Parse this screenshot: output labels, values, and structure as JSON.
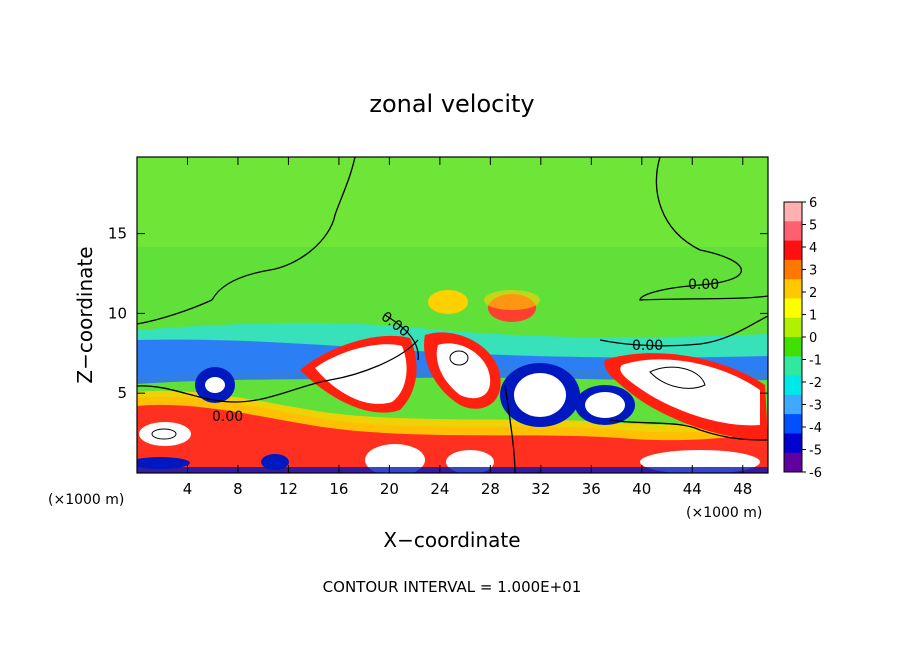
{
  "chart_data": {
    "type": "heatmap",
    "title": "zonal velocity",
    "xlabel": "X−coordinate",
    "ylabel": "Z−coordinate",
    "x_unit_left": "(×1000 m)",
    "x_unit_right": "(×1000 m)",
    "footer": "CONTOUR INTERVAL = 1.000E+01",
    "xlim": [
      0,
      50
    ],
    "ylim": [
      0,
      19.8
    ],
    "x_ticks": [
      4,
      8,
      12,
      16,
      20,
      24,
      28,
      32,
      36,
      40,
      44,
      48
    ],
    "y_ticks": [
      5,
      10,
      15
    ],
    "colorbar": {
      "ticks": [
        6,
        5,
        4,
        3,
        2,
        1,
        0,
        -1,
        -2,
        -3,
        -4,
        -5,
        -6
      ],
      "colors": [
        "#ffb0b0",
        "#ff6070",
        "#ff1010",
        "#ff7800",
        "#ffc800",
        "#ffff00",
        "#b0f000",
        "#40e000",
        "#30e8a0",
        "#00e8e8",
        "#40a8ff",
        "#0050ff",
        "#0000d0",
        "#6000a0"
      ]
    },
    "contour_labels": [
      "0.00",
      "0.00",
      "0.00",
      "0.00"
    ],
    "grid": false,
    "legend": "colorbar-right"
  }
}
